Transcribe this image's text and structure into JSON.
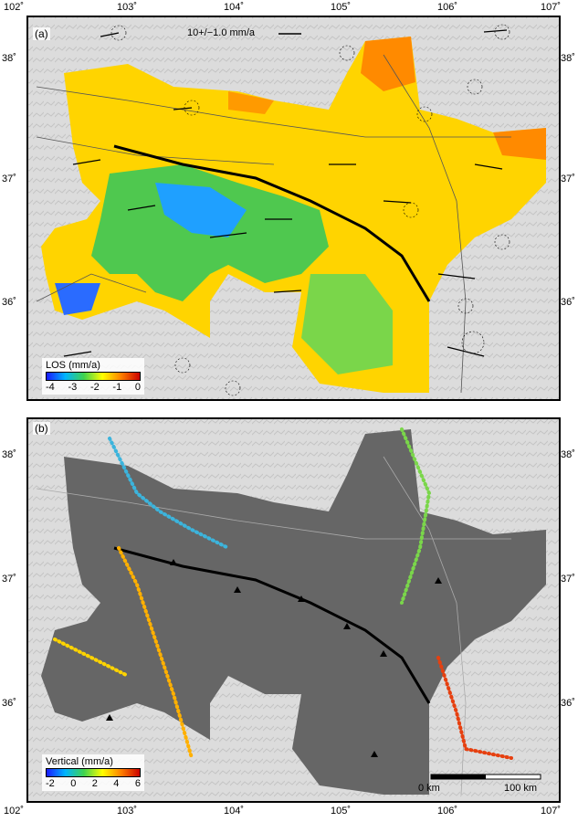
{
  "panel_a": {
    "label": "(a)",
    "velocity_reference": "10+/−1.0 mm/a",
    "colorbar": {
      "title": "LOS (mm/a)",
      "ticks": [
        "-4",
        "-3",
        "-2",
        "-1",
        "0"
      ],
      "colors": [
        "#1a1aff",
        "#00b4ff",
        "#3fd34f",
        "#ffff00",
        "#ff8000",
        "#cc0000"
      ]
    }
  },
  "panel_b": {
    "label": "(b)",
    "colorbar": {
      "title": "Vertical (mm/a)",
      "ticks": [
        "-2",
        "0",
        "2",
        "4",
        "6"
      ],
      "colors": [
        "#1a1aff",
        "#00b4ff",
        "#3fd34f",
        "#ffff00",
        "#ff8000",
        "#cc0000"
      ]
    },
    "scale_bar": {
      "start_label": "0 km",
      "end_label": "100 km"
    }
  },
  "axes": {
    "longitude_ticks": [
      "102˚",
      "103˚",
      "104˚",
      "105˚",
      "106˚",
      "107˚"
    ],
    "latitude_ticks": [
      "38˚",
      "37˚",
      "36˚"
    ]
  },
  "colors": {
    "frame": "#000000",
    "terrain": "#d9d9d9",
    "mask": "#666666",
    "fault": "#000000"
  }
}
